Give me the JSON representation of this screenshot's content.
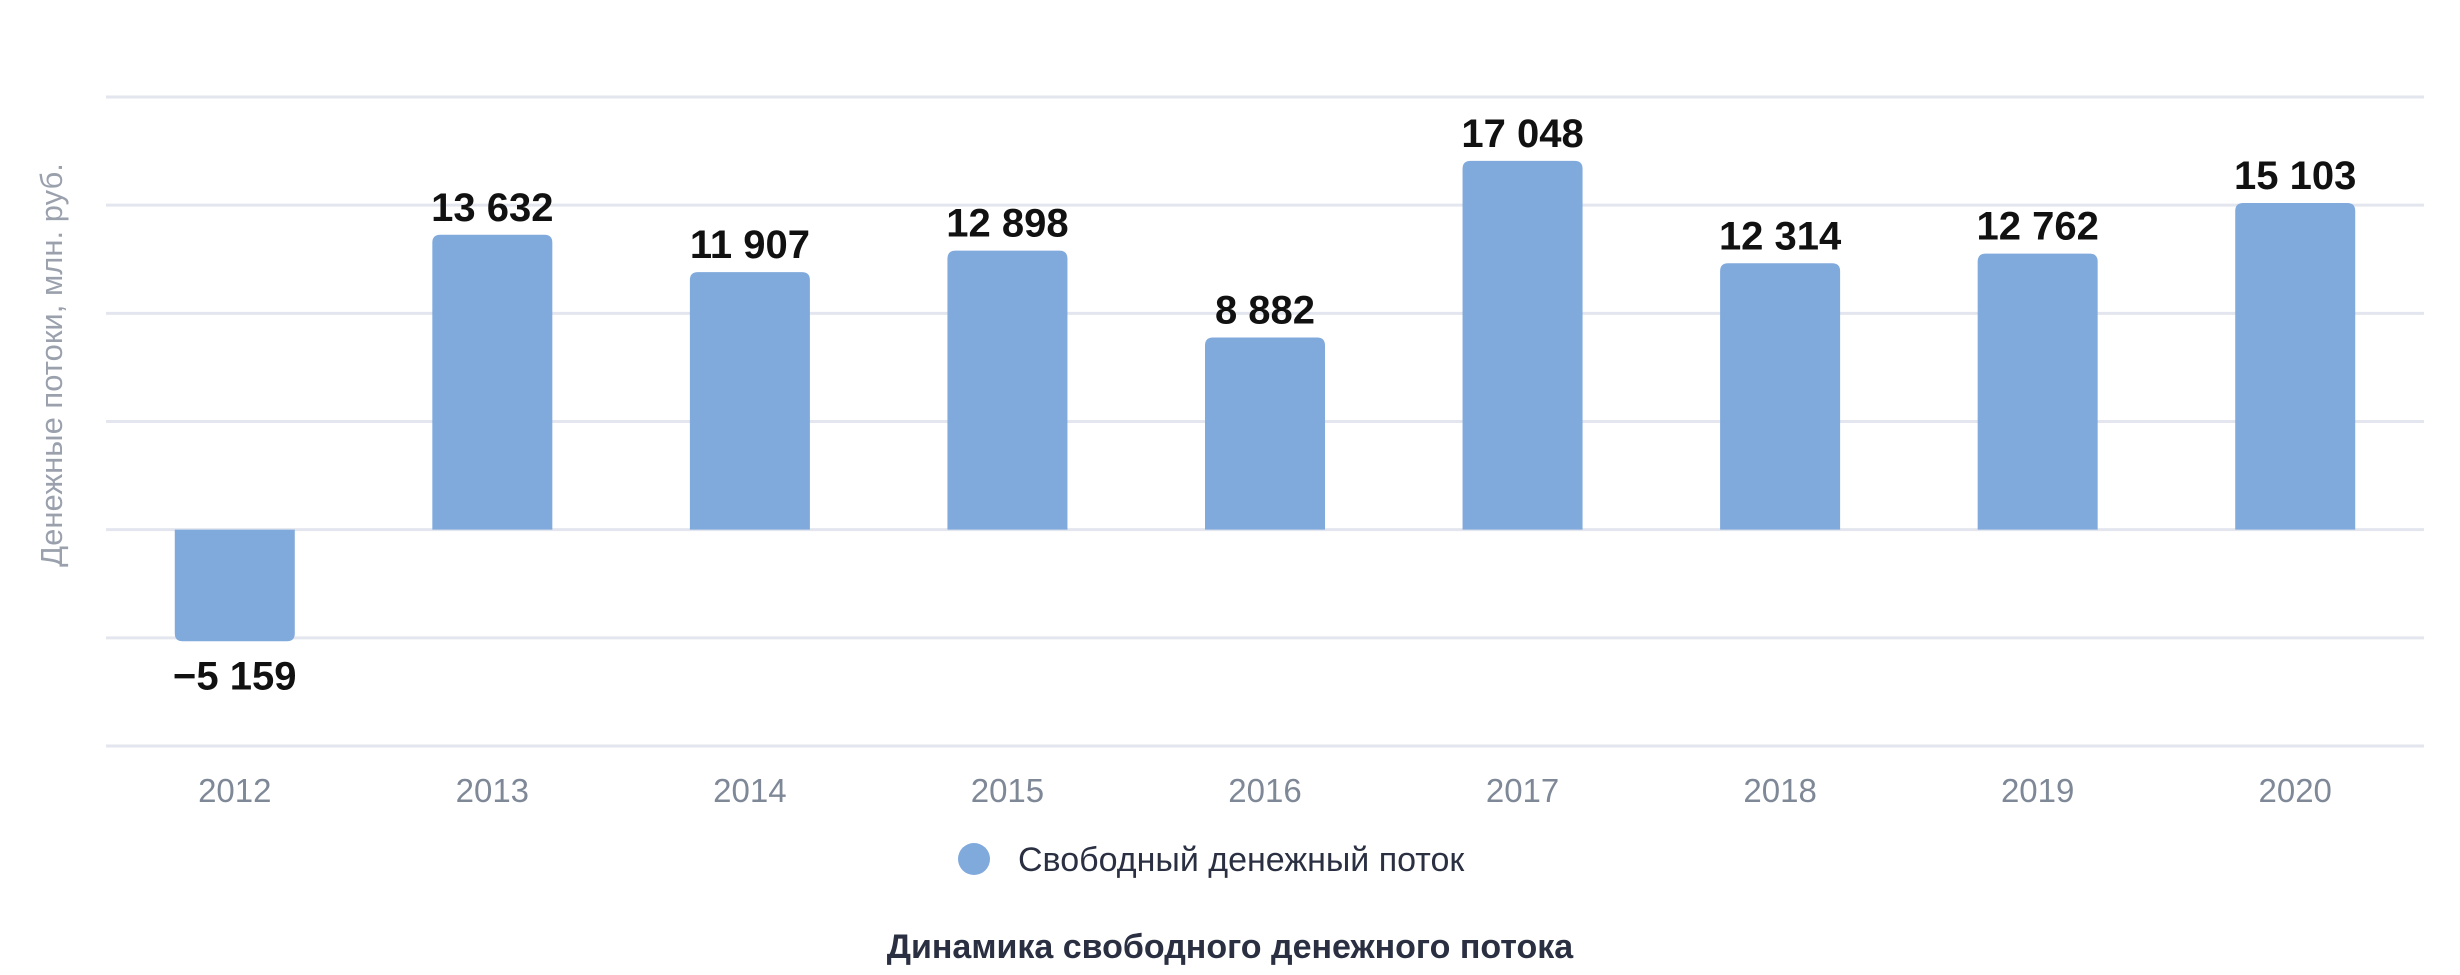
{
  "chart_data": {
    "type": "bar",
    "title": "Динамика свободного денежного потока",
    "ylabel": "Денежные потоки, млн. руб.",
    "xlabel": "",
    "categories": [
      "2012",
      "2013",
      "2014",
      "2015",
      "2016",
      "2017",
      "2018",
      "2019",
      "2020"
    ],
    "series": [
      {
        "name": "Свободный денежный поток",
        "color": "#80a9dc",
        "values": [
          -5159,
          13632,
          11907,
          12898,
          8882,
          17048,
          12314,
          12762,
          15103
        ]
      }
    ],
    "value_labels": [
      "−5 159",
      "13 632",
      "11 907",
      "12 898",
      "8 882",
      "17 048",
      "12 314",
      "12 762",
      "15 103"
    ],
    "ylim": [
      -10000,
      20000
    ],
    "grid": true,
    "legend": "bottom-center"
  }
}
